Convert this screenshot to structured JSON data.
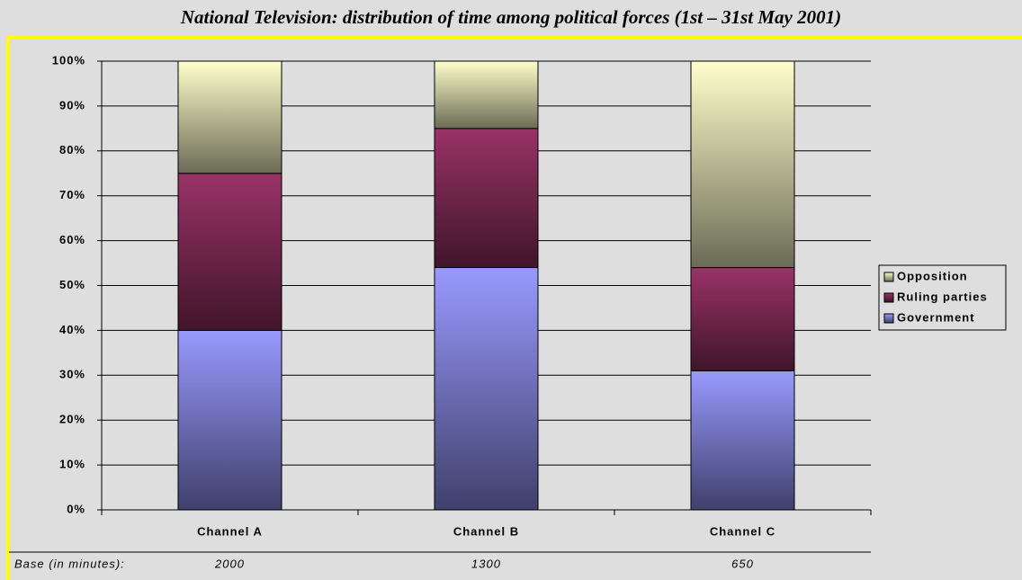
{
  "chart_data": {
    "type": "stacked_bar",
    "title": "National Television: distribution of time among political forces (1st – 31st May 2001)",
    "categories": [
      "Channel A",
      "Channel B",
      "Channel C"
    ],
    "series": [
      {
        "name": "Government",
        "color": "#9999ff",
        "values": [
          40,
          54,
          31
        ]
      },
      {
        "name": "Ruling parties",
        "color": "#993366",
        "values": [
          35,
          31,
          23
        ]
      },
      {
        "name": "Opposition",
        "color": "#ffffcc",
        "values": [
          25,
          15,
          46
        ]
      }
    ],
    "ylim": [
      0,
      100
    ],
    "yticks": [
      {
        "value": 0,
        "label": "0%"
      },
      {
        "value": 10,
        "label": "10%"
      },
      {
        "value": 20,
        "label": "20%"
      },
      {
        "value": 30,
        "label": "30%"
      },
      {
        "value": 40,
        "label": "40%"
      },
      {
        "value": 50,
        "label": "50%"
      },
      {
        "value": 60,
        "label": "60%"
      },
      {
        "value": 70,
        "label": "70%"
      },
      {
        "value": 80,
        "label": "80%"
      },
      {
        "value": 90,
        "label": "90%"
      },
      {
        "value": 100,
        "label": "100%"
      }
    ],
    "grid": true,
    "legend": "right",
    "base_label": "Base (in minutes):",
    "base_values": [
      2000,
      1300,
      650
    ]
  }
}
